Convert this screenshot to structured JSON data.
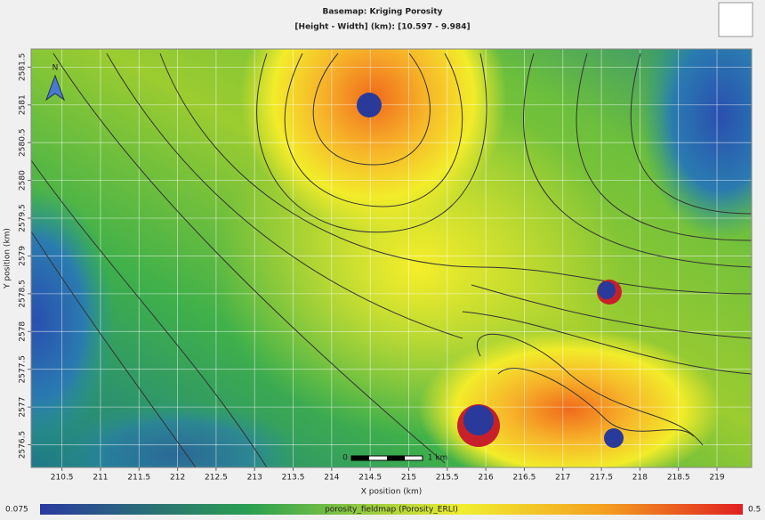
{
  "chart_data": {
    "type": "map",
    "title": "Basemap: Kriging Porosity",
    "subtitle": "[Height - Width]  (km): [10.597 - 9.984]",
    "x_label": "X position (km)",
    "y_label": "Y position (km)",
    "xlim": [
      210.1,
      219.45
    ],
    "ylim": [
      2576.2,
      2581.74
    ],
    "xticks": [
      210.5,
      211,
      211.5,
      212,
      212.5,
      213,
      213.5,
      214,
      214.5,
      215,
      215.5,
      216,
      216.5,
      217,
      217.5,
      218,
      218.5,
      219
    ],
    "yticks": [
      2576.5,
      2577,
      2577.5,
      2578,
      2578.5,
      2579,
      2579.5,
      2580,
      2580.5,
      2581,
      2581.5
    ],
    "grid": true,
    "north_label": "N",
    "scale_bar_labels": [
      "0",
      "1 km"
    ],
    "colorbar": {
      "min": 0.075,
      "max": 0.5,
      "label": "porosity_fieldmap (Porosity_ERLI)"
    }
  }
}
